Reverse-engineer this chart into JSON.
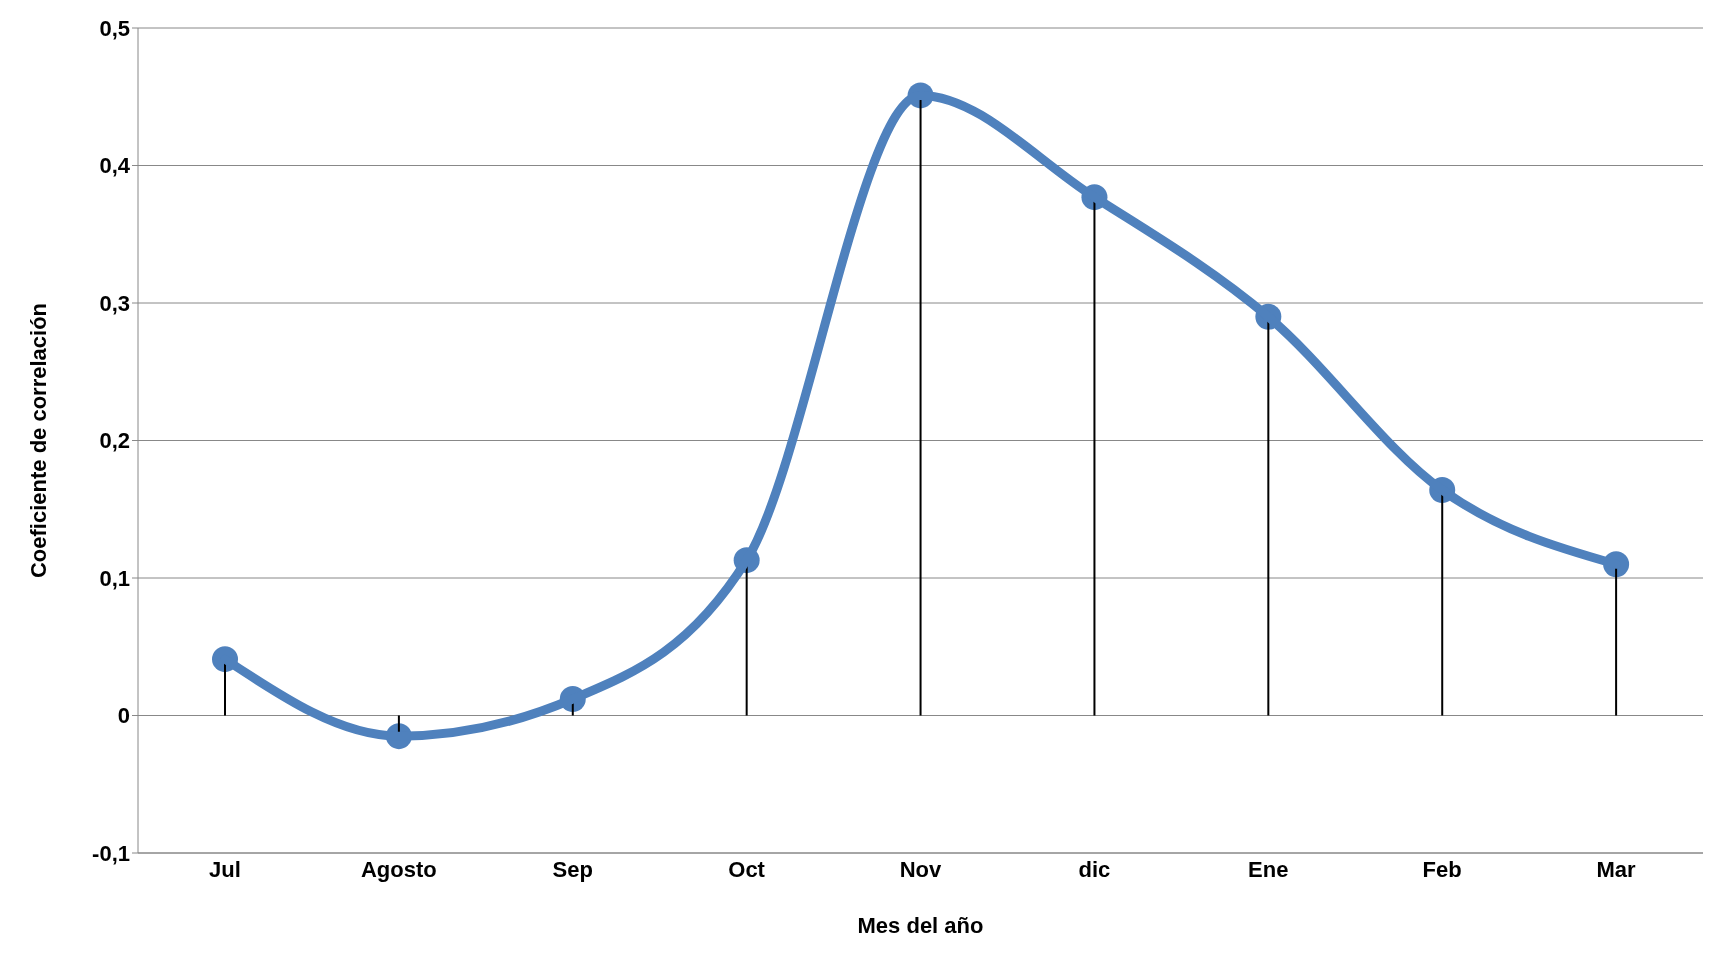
{
  "chart_data": {
    "type": "lollipop",
    "xlabel": "Mes del año",
    "ylabel": "Coeficiente de correlación",
    "categories": [
      "Jul",
      "Agosto",
      "Sep",
      "Oct",
      "Nov",
      "dic",
      "Ene",
      "Feb",
      "Mar"
    ],
    "series": [
      {
        "type": "line",
        "color": "#4f81bd",
        "values": [
          0.041,
          -0.015,
          0.012,
          0.113,
          0.451,
          0.377,
          0.29,
          0.164,
          0.11
        ]
      },
      {
        "color": "#4f81bd",
        "values": [
          0.041,
          -0.015,
          0.012,
          0.113,
          0.451,
          0.377,
          0.29,
          0.164,
          0.11
        ]
      }
    ],
    "ylim": [
      -0.1,
      0.5
    ],
    "yticks": [
      {
        "value": -0.1,
        "label": "-0,1"
      },
      0,
      {
        "value": 0.1,
        "label": "0,1"
      },
      {
        "value": 0.2,
        "label": "0,2"
      },
      {
        "value": 0.3,
        "label": "0,3"
      },
      {
        "value": 0.4,
        "label": "0,4"
      },
      {
        "value": 0.5,
        "label": "0,5"
      }
    ],
    "grid": "y",
    "line_style": "solid"
  }
}
